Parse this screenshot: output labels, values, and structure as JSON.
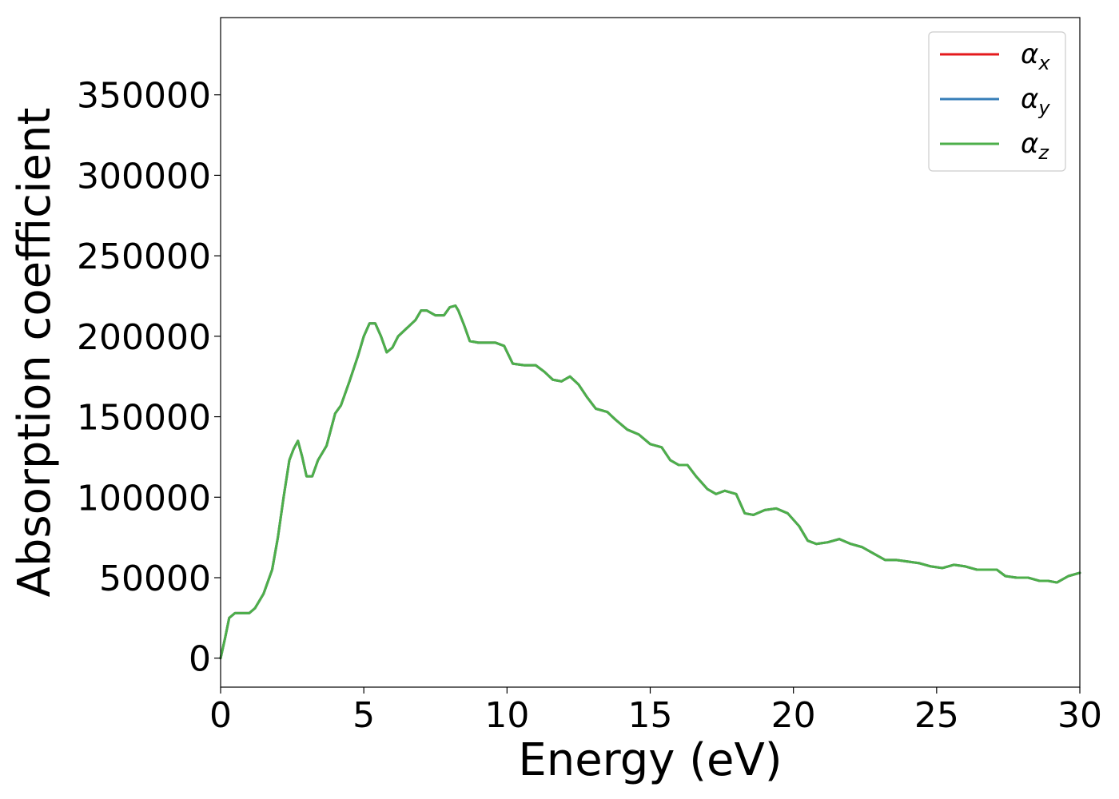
{
  "chart_data": {
    "type": "line",
    "title": "",
    "xlabel": "Energy (eV)",
    "ylabel": "Absorption coefficient",
    "xlim": [
      0,
      30
    ],
    "ylim": [
      -18000,
      398000
    ],
    "xticks": [
      0,
      5,
      10,
      15,
      20,
      25,
      30
    ],
    "yticks": [
      0,
      50000,
      100000,
      150000,
      200000,
      250000,
      300000,
      350000
    ],
    "grid": false,
    "legend_position": "top-right",
    "series": [
      {
        "name": "α_x",
        "legend_symbol": "α",
        "legend_sub": "x",
        "color": "#e41a1c",
        "x": [
          0,
          0.15,
          0.3,
          0.5,
          0.7,
          1.0,
          1.2,
          1.5,
          1.8,
          2.0,
          2.2,
          2.4,
          2.55,
          2.7,
          2.85,
          3.0,
          3.2,
          3.4,
          3.7,
          4.0,
          4.2,
          4.5,
          4.8,
          5.0,
          5.2,
          5.4,
          5.6,
          5.8,
          6.0,
          6.2,
          6.5,
          6.8,
          7.0,
          7.2,
          7.5,
          7.8,
          8.0,
          8.2,
          8.3,
          8.5,
          8.7,
          9.0,
          9.3,
          9.6,
          9.9,
          10.2,
          10.6,
          11.0,
          11.3,
          11.6,
          11.9,
          12.2,
          12.5,
          12.8,
          13.1,
          13.5,
          13.8,
          14.2,
          14.6,
          15.0,
          15.4,
          15.7,
          16.0,
          16.3,
          16.6,
          17.0,
          17.3,
          17.6,
          18.0,
          18.3,
          18.6,
          19.0,
          19.4,
          19.8,
          20.2,
          20.5,
          20.8,
          21.2,
          21.6,
          22.0,
          22.4,
          22.8,
          23.2,
          23.6,
          24.0,
          24.4,
          24.8,
          25.2,
          25.6,
          26.0,
          26.4,
          26.8,
          27.1,
          27.4,
          27.8,
          28.2,
          28.6,
          28.9,
          29.2,
          29.6,
          30.0
        ],
        "y": [
          0,
          12000,
          25000,
          28000,
          28000,
          28000,
          31000,
          40000,
          55000,
          75000,
          100000,
          123000,
          130000,
          135000,
          125000,
          113000,
          113000,
          123000,
          132000,
          152000,
          157000,
          172000,
          188000,
          200000,
          208000,
          208000,
          200000,
          190000,
          193000,
          200000,
          205000,
          210000,
          216000,
          216000,
          213000,
          213000,
          218000,
          219000,
          216000,
          207000,
          197000,
          196000,
          196000,
          196000,
          194000,
          183000,
          182000,
          182000,
          178000,
          173000,
          172000,
          175000,
          170000,
          162000,
          155000,
          153000,
          148000,
          142000,
          139000,
          133000,
          131000,
          123000,
          120000,
          120000,
          113000,
          105000,
          102000,
          104000,
          102000,
          90000,
          89000,
          92000,
          93000,
          90000,
          82000,
          73000,
          71000,
          72000,
          74000,
          71000,
          69000,
          65000,
          61000,
          61000,
          60000,
          59000,
          57000,
          56000,
          58000,
          57000,
          55000,
          55000,
          55000,
          51000,
          50000,
          50000,
          48000,
          48000,
          47000,
          51000,
          53000
        ]
      },
      {
        "name": "α_y",
        "legend_symbol": "α",
        "legend_sub": "y",
        "color": "#377eb8",
        "x": [
          0,
          0.15,
          0.3,
          0.5,
          0.7,
          1.0,
          1.2,
          1.5,
          1.8,
          2.0,
          2.2,
          2.4,
          2.55,
          2.7,
          2.85,
          3.0,
          3.2,
          3.4,
          3.7,
          4.0,
          4.2,
          4.5,
          4.8,
          5.0,
          5.2,
          5.4,
          5.6,
          5.8,
          6.0,
          6.2,
          6.5,
          6.8,
          7.0,
          7.2,
          7.5,
          7.8,
          8.0,
          8.2,
          8.3,
          8.5,
          8.7,
          9.0,
          9.3,
          9.6,
          9.9,
          10.2,
          10.6,
          11.0,
          11.3,
          11.6,
          11.9,
          12.2,
          12.5,
          12.8,
          13.1,
          13.5,
          13.8,
          14.2,
          14.6,
          15.0,
          15.4,
          15.7,
          16.0,
          16.3,
          16.6,
          17.0,
          17.3,
          17.6,
          18.0,
          18.3,
          18.6,
          19.0,
          19.4,
          19.8,
          20.2,
          20.5,
          20.8,
          21.2,
          21.6,
          22.0,
          22.4,
          22.8,
          23.2,
          23.6,
          24.0,
          24.4,
          24.8,
          25.2,
          25.6,
          26.0,
          26.4,
          26.8,
          27.1,
          27.4,
          27.8,
          28.2,
          28.6,
          28.9,
          29.2,
          29.6,
          30.0
        ],
        "y": [
          0,
          12000,
          25000,
          28000,
          28000,
          28000,
          31000,
          40000,
          55000,
          75000,
          100000,
          123000,
          130000,
          135000,
          125000,
          113000,
          113000,
          123000,
          132000,
          152000,
          157000,
          172000,
          188000,
          200000,
          208000,
          208000,
          200000,
          190000,
          193000,
          200000,
          205000,
          210000,
          216000,
          216000,
          213000,
          213000,
          218000,
          219000,
          216000,
          207000,
          197000,
          196000,
          196000,
          196000,
          194000,
          183000,
          182000,
          182000,
          178000,
          173000,
          172000,
          175000,
          170000,
          162000,
          155000,
          153000,
          148000,
          142000,
          139000,
          133000,
          131000,
          123000,
          120000,
          120000,
          113000,
          105000,
          102000,
          104000,
          102000,
          90000,
          89000,
          92000,
          93000,
          90000,
          82000,
          73000,
          71000,
          72000,
          74000,
          71000,
          69000,
          65000,
          61000,
          61000,
          60000,
          59000,
          57000,
          56000,
          58000,
          57000,
          55000,
          55000,
          55000,
          51000,
          50000,
          50000,
          48000,
          48000,
          47000,
          51000,
          53000
        ]
      },
      {
        "name": "α_z",
        "legend_symbol": "α",
        "legend_sub": "z",
        "color": "#4daf4a",
        "x": [
          0,
          0.15,
          0.3,
          0.5,
          0.7,
          1.0,
          1.2,
          1.5,
          1.8,
          2.0,
          2.2,
          2.4,
          2.55,
          2.7,
          2.85,
          3.0,
          3.2,
          3.4,
          3.7,
          4.0,
          4.2,
          4.5,
          4.8,
          5.0,
          5.2,
          5.4,
          5.6,
          5.8,
          6.0,
          6.2,
          6.5,
          6.8,
          7.0,
          7.2,
          7.5,
          7.8,
          8.0,
          8.2,
          8.3,
          8.5,
          8.7,
          9.0,
          9.3,
          9.6,
          9.9,
          10.2,
          10.6,
          11.0,
          11.3,
          11.6,
          11.9,
          12.2,
          12.5,
          12.8,
          13.1,
          13.5,
          13.8,
          14.2,
          14.6,
          15.0,
          15.4,
          15.7,
          16.0,
          16.3,
          16.6,
          17.0,
          17.3,
          17.6,
          18.0,
          18.3,
          18.6,
          19.0,
          19.4,
          19.8,
          20.2,
          20.5,
          20.8,
          21.2,
          21.6,
          22.0,
          22.4,
          22.8,
          23.2,
          23.6,
          24.0,
          24.4,
          24.8,
          25.2,
          25.6,
          26.0,
          26.4,
          26.8,
          27.1,
          27.4,
          27.8,
          28.2,
          28.6,
          28.9,
          29.2,
          29.6,
          30.0
        ],
        "y": [
          0,
          12000,
          25000,
          28000,
          28000,
          28000,
          31000,
          40000,
          55000,
          75000,
          100000,
          123000,
          130000,
          135000,
          125000,
          113000,
          113000,
          123000,
          132000,
          152000,
          157000,
          172000,
          188000,
          200000,
          208000,
          208000,
          200000,
          190000,
          193000,
          200000,
          205000,
          210000,
          216000,
          216000,
          213000,
          213000,
          218000,
          219000,
          216000,
          207000,
          197000,
          196000,
          196000,
          196000,
          194000,
          183000,
          182000,
          182000,
          178000,
          173000,
          172000,
          175000,
          170000,
          162000,
          155000,
          153000,
          148000,
          142000,
          139000,
          133000,
          131000,
          123000,
          120000,
          120000,
          113000,
          105000,
          102000,
          104000,
          102000,
          90000,
          89000,
          92000,
          93000,
          90000,
          82000,
          73000,
          71000,
          72000,
          74000,
          71000,
          69000,
          65000,
          61000,
          61000,
          60000,
          59000,
          57000,
          56000,
          58000,
          57000,
          55000,
          55000,
          55000,
          51000,
          50000,
          50000,
          48000,
          48000,
          47000,
          51000,
          53000
        ]
      }
    ]
  }
}
